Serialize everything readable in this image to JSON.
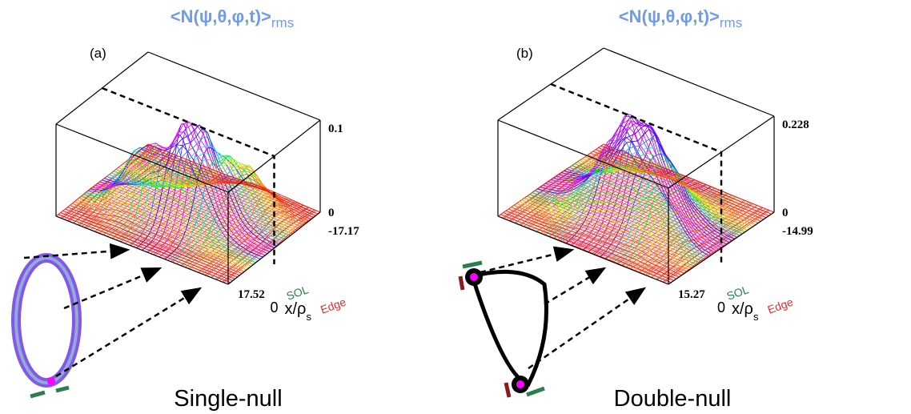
{
  "panels": [
    {
      "title": {
        "main": "<N(ψ,θ,φ,t)>",
        "sub": "rms"
      },
      "label": "(a)",
      "z_top": "0.1",
      "z_bottom": "0",
      "x_far": "-17.17",
      "x_near": "17.52",
      "x_zero": "0",
      "x_label": {
        "main": "x/ρ",
        "sub": "s"
      },
      "edge": "Edge",
      "sol": "SOL",
      "caption": "Single-null"
    },
    {
      "title": {
        "main": "<N(ψ,θ,φ,t)>",
        "sub": "rms"
      },
      "label": "(b)",
      "z_top": "0.228",
      "z_bottom": "0",
      "x_far": "-14.99",
      "x_near": "15.27",
      "x_zero": "0",
      "x_label": {
        "main": "x/ρ",
        "sub": "s"
      },
      "edge": "Edge",
      "sol": "SOL",
      "caption": "Double-null"
    }
  ]
}
